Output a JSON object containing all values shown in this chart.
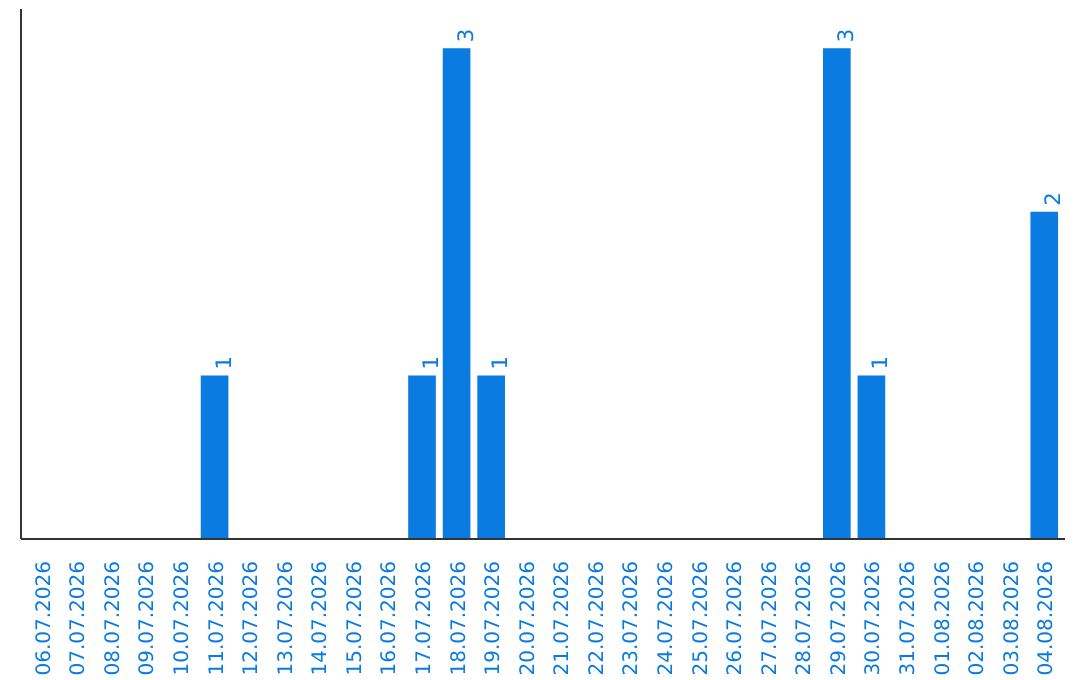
{
  "chart_data": {
    "type": "bar",
    "categories": [
      "06.07.2026",
      "07.07.2026",
      "08.07.2026",
      "09.07.2026",
      "10.07.2026",
      "11.07.2026",
      "12.07.2026",
      "13.07.2026",
      "14.07.2026",
      "15.07.2026",
      "16.07.2026",
      "17.07.2026",
      "18.07.2026",
      "19.07.2026",
      "20.07.2026",
      "21.07.2026",
      "22.07.2026",
      "23.07.2026",
      "24.07.2026",
      "25.07.2026",
      "26.07.2026",
      "27.07.2026",
      "28.07.2026",
      "29.07.2026",
      "30.07.2026",
      "31.07.2026",
      "01.08.2026",
      "02.08.2026",
      "03.08.2026",
      "04.08.2026"
    ],
    "values": [
      0,
      0,
      0,
      0,
      0,
      1,
      0,
      0,
      0,
      0,
      0,
      1,
      3,
      1,
      0,
      0,
      0,
      0,
      0,
      0,
      0,
      0,
      0,
      3,
      1,
      0,
      0,
      0,
      0,
      2
    ],
    "color": "#0a7be0",
    "value_labels": [
      null,
      null,
      null,
      null,
      null,
      "1",
      null,
      null,
      null,
      null,
      null,
      "1",
      "3",
      "1",
      null,
      null,
      null,
      null,
      null,
      null,
      null,
      null,
      null,
      "3",
      "1",
      null,
      null,
      null,
      null,
      "2"
    ],
    "grid": false
  }
}
